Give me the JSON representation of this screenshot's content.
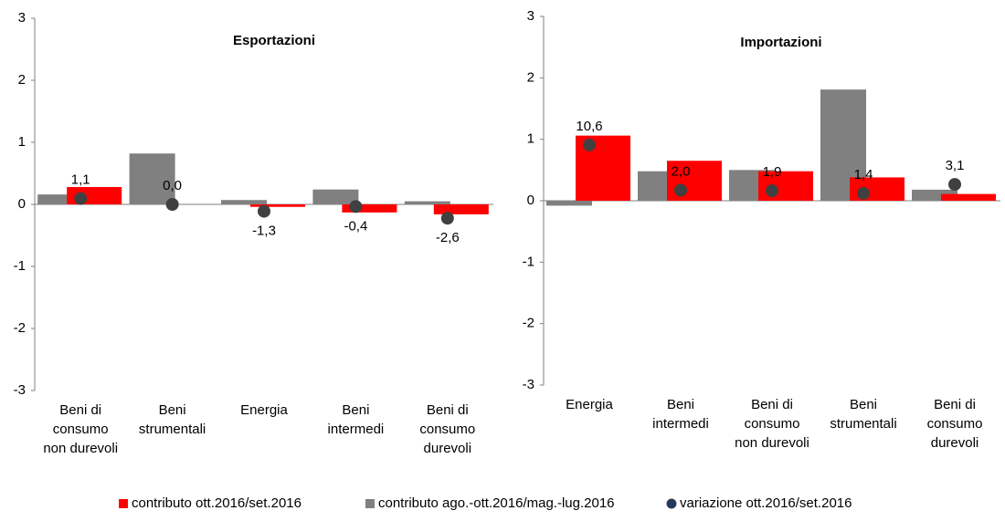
{
  "chart_data": [
    {
      "type": "bar",
      "title": "Esportazioni",
      "categories": [
        [
          "Beni di",
          "consumo",
          "non durevoli"
        ],
        [
          "Beni",
          "strumentali"
        ],
        [
          "Energia"
        ],
        [
          "Beni",
          "intermedi"
        ],
        [
          "Beni di",
          "consumo",
          "durevoli"
        ]
      ],
      "series": [
        {
          "name": "contributo ott.2016/set.2016",
          "color": "#ff0000",
          "values": [
            0.28,
            0.0,
            -0.04,
            -0.13,
            -0.16
          ]
        },
        {
          "name": "contributo ago.-ott.2016/mag.-lug.2016",
          "color": "#808080",
          "values": [
            0.16,
            0.82,
            0.07,
            0.24,
            0.05
          ]
        },
        {
          "name": "variazione ott.2016/set.2016",
          "color": "#404040",
          "type": "scatter",
          "axis": "y2",
          "values": [
            1.1,
            0.0,
            -1.3,
            -0.4,
            -2.6
          ],
          "value_labels": [
            "1,1",
            "0,0",
            "-1,3",
            "-0,4",
            "-2,6"
          ]
        }
      ],
      "ylim": [
        -3,
        3
      ],
      "yticks": [
        -3,
        -2,
        -1,
        0,
        1,
        2,
        3
      ],
      "y2lim": [
        -35,
        35
      ]
    },
    {
      "type": "bar",
      "title": "Importazioni",
      "categories": [
        [
          "Energia"
        ],
        [
          "Beni",
          "intermedi"
        ],
        [
          "Beni di",
          "consumo",
          "non durevoli"
        ],
        [
          "Beni",
          "strumentali"
        ],
        [
          "Beni di",
          "consumo",
          "durevoli"
        ]
      ],
      "series": [
        {
          "name": "contributo ott.2016/set.2016",
          "color": "#ff0000",
          "values": [
            1.06,
            0.65,
            0.48,
            0.38,
            0.11
          ]
        },
        {
          "name": "contributo ago.-ott.2016/mag.-lug.2016",
          "color": "#808080",
          "values": [
            -0.08,
            0.48,
            0.5,
            1.81,
            0.18
          ]
        },
        {
          "name": "variazione ott.2016/set.2016",
          "color": "#404040",
          "type": "scatter",
          "axis": "y2",
          "values": [
            10.6,
            2.0,
            1.9,
            1.4,
            3.1
          ],
          "value_labels": [
            "10,6",
            "2,0",
            "1,9",
            "1,4",
            "3,1"
          ]
        }
      ],
      "ylim": [
        -3,
        3
      ],
      "yticks": [
        -3,
        -2,
        -1,
        0,
        1,
        2,
        3
      ],
      "y2lim": [
        -35,
        35
      ]
    }
  ]
}
